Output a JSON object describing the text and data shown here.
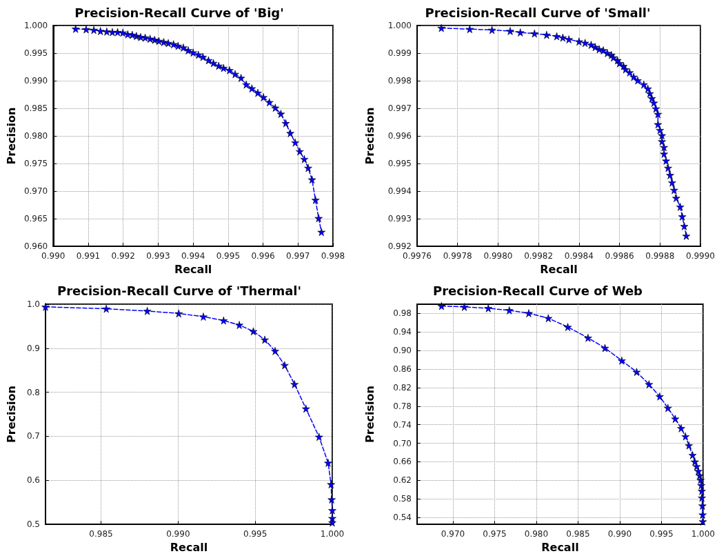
{
  "chart_data": [
    {
      "type": "line",
      "title": "Precision-Recall Curve of 'Big'",
      "xlabel": "Recall",
      "ylabel": "Precision",
      "xlim": [
        0.99,
        0.998
      ],
      "ylim": [
        0.96,
        1.0
      ],
      "xticks": [
        {
          "value": 0.99,
          "label": "0.990"
        },
        0.991,
        0.992,
        0.993,
        0.994,
        0.995,
        0.996,
        0.997,
        0.998
      ],
      "yticks": [
        {
          "value": 0.96,
          "label": "0.960"
        },
        0.965,
        {
          "value": 0.97,
          "label": "0.970"
        },
        0.975,
        {
          "value": 0.98,
          "label": "0.980"
        },
        0.985,
        {
          "value": 0.99,
          "label": "0.990"
        },
        0.995,
        {
          "value": 1.0,
          "label": "1.000"
        }
      ],
      "grid": true,
      "marker": "star",
      "line_style": "dashed",
      "series": [
        {
          "color": "#0000ff",
          "x": [
            0.99064,
            0.99094,
            0.99116,
            0.99135,
            0.99153,
            0.99169,
            0.99184,
            0.99199,
            0.99213,
            0.99226,
            0.99238,
            0.9925,
            0.99263,
            0.99277,
            0.9929,
            0.99302,
            0.99316,
            0.99329,
            0.99344,
            0.99357,
            0.99372,
            0.99386,
            0.994,
            0.99415,
            0.99428,
            0.99444,
            0.99458,
            0.99473,
            0.99487,
            0.99504,
            0.9952,
            0.99537,
            0.99552,
            0.99568,
            0.99585,
            0.99601,
            0.99618,
            0.99635,
            0.99651,
            0.99665,
            0.99678,
            0.99692,
            0.99705,
            0.99718,
            0.99729,
            0.9974,
            0.9975,
            0.99759,
            0.99767
          ],
          "values": [
            0.9994,
            0.9993,
            0.9992,
            0.999,
            0.9989,
            0.9988,
            0.9988,
            0.9987,
            0.9984,
            0.9983,
            0.9981,
            0.9979,
            0.9978,
            0.9976,
            0.9974,
            0.9972,
            0.997,
            0.9968,
            0.9966,
            0.9963,
            0.996,
            0.9955,
            0.9951,
            0.9947,
            0.9943,
            0.9937,
            0.9932,
            0.9927,
            0.9923,
            0.9919,
            0.9912,
            0.9905,
            0.9893,
            0.9886,
            0.9878,
            0.987,
            0.9861,
            0.9851,
            0.984,
            0.9823,
            0.9805,
            0.9788,
            0.9772,
            0.9758,
            0.9742,
            0.9721,
            0.9684,
            0.9651,
            0.9626
          ]
        }
      ]
    },
    {
      "type": "line",
      "title": "Precision-Recall Curve of 'Small'",
      "xlabel": "Recall",
      "ylabel": "Precision",
      "xlim": [
        0.9976,
        0.999
      ],
      "ylim": [
        0.992,
        1.0
      ],
      "xticks": [
        0.9976,
        0.9978,
        {
          "value": 0.998,
          "label": "0.9980"
        },
        0.9982,
        0.9984,
        0.9986,
        0.9988,
        {
          "value": 0.999,
          "label": "0.9990"
        }
      ],
      "yticks": [
        0.992,
        0.993,
        0.994,
        0.995,
        0.996,
        0.997,
        0.998,
        0.999,
        {
          "value": 1.0,
          "label": "1.000"
        }
      ],
      "grid": true,
      "marker": "star",
      "line_style": "dashed",
      "series": [
        {
          "color": "#0000ff",
          "x": [
            0.99772,
            0.99786,
            0.99797,
            0.99806,
            0.99811,
            0.99818,
            0.99824,
            0.99829,
            0.99832,
            0.99835,
            0.9984,
            0.99843,
            0.99846,
            0.99848,
            0.9985,
            0.99852,
            0.99854,
            0.99856,
            0.99857,
            0.99859,
            0.9986,
            0.99862,
            0.99863,
            0.99865,
            0.99867,
            0.99869,
            0.99872,
            0.99874,
            0.99875,
            0.99876,
            0.99877,
            0.99878,
            0.99879,
            0.99879,
            0.9988,
            0.99881,
            0.99881,
            0.99882,
            0.99882,
            0.99883,
            0.99884,
            0.99885,
            0.99886,
            0.99887,
            0.99888,
            0.9989,
            0.99891,
            0.99892,
            0.99893
          ],
          "values": [
            0.99991,
            0.99987,
            0.99984,
            0.9998,
            0.99975,
            0.99971,
            0.99966,
            0.99961,
            0.99956,
            0.9995,
            0.99942,
            0.99937,
            0.9993,
            0.99922,
            0.99914,
            0.9991,
            0.999,
            0.99893,
            0.99884,
            0.99874,
            0.99863,
            0.99853,
            0.99841,
            0.9983,
            0.99814,
            0.99801,
            0.99786,
            0.99771,
            0.99754,
            0.99736,
            0.9972,
            0.99699,
            0.99679,
            0.99642,
            0.99621,
            0.99602,
            0.9958,
            0.99559,
            0.99535,
            0.9951,
            0.99484,
            0.99458,
            0.99431,
            0.99404,
            0.99375,
            0.99343,
            0.99308,
            0.99273,
            0.99238
          ]
        }
      ]
    },
    {
      "type": "line",
      "title": "Precision-Recall Curve of 'Thermal'",
      "xlabel": "Recall",
      "ylabel": "Precision",
      "xlim": [
        0.9814,
        1.0
      ],
      "ylim": [
        0.5,
        1.0
      ],
      "xticks": [
        0.985,
        {
          "value": 0.99,
          "label": "0.990"
        },
        0.995,
        {
          "value": 1.0,
          "label": "1.000"
        }
      ],
      "yticks": [
        0.5,
        0.6,
        0.7,
        0.8,
        0.9,
        {
          "value": 1.0,
          "label": "1.0"
        }
      ],
      "grid": true,
      "marker": "star",
      "line_style": "dashed",
      "series": [
        {
          "color": "#0000ff",
          "x": [
            0.9814,
            0.98534,
            0.988,
            0.99004,
            0.99164,
            0.99295,
            0.99397,
            0.99488,
            0.99562,
            0.99629,
            0.99691,
            0.99755,
            0.99829,
            0.99914,
            0.99973,
            0.99992,
            0.99996,
            1.0,
            1.0,
            1.0
          ],
          "values": [
            0.994,
            0.9897,
            0.9846,
            0.979,
            0.9718,
            0.963,
            0.9528,
            0.9384,
            0.9194,
            0.8937,
            0.8614,
            0.8183,
            0.7628,
            0.6987,
            0.6396,
            0.5909,
            0.5565,
            0.5318,
            0.514,
            0.504
          ]
        }
      ]
    },
    {
      "type": "line",
      "title": "Precision-Recall Curve of Web",
      "xlabel": "Recall",
      "ylabel": "Precision",
      "xlim": [
        0.9657,
        1.0
      ],
      "ylim": [
        0.525,
        1.0
      ],
      "xticks": [
        {
          "value": 0.97,
          "label": "0.970"
        },
        0.975,
        {
          "value": 0.98,
          "label": "0.980"
        },
        0.985,
        {
          "value": 0.99,
          "label": "0.990"
        },
        0.995,
        {
          "value": 1.0,
          "label": "1.000"
        }
      ],
      "yticks": [
        0.54,
        0.58,
        0.62,
        0.66,
        {
          "value": 0.7,
          "label": "0.70"
        },
        0.74,
        0.78,
        0.82,
        0.86,
        {
          "value": 0.9,
          "label": "0.90"
        },
        0.94,
        0.98
      ],
      "grid": true,
      "marker": "star",
      "line_style": "dashed",
      "series": [
        {
          "color": "#0000ff",
          "x": [
            0.96863,
            0.97137,
            0.97424,
            0.97676,
            0.97909,
            0.98144,
            0.98377,
            0.9862,
            0.98823,
            0.99025,
            0.99203,
            0.99351,
            0.9948,
            0.99578,
            0.99666,
            0.99737,
            0.99789,
            0.9983,
            0.99874,
            0.99901,
            0.99923,
            0.99943,
            0.99959,
            0.9997,
            0.99978,
            0.99984,
            0.99986,
            0.99992,
            0.99995,
            0.99997
          ],
          "values": [
            0.9961,
            0.9942,
            0.9913,
            0.9868,
            0.9805,
            0.9698,
            0.9508,
            0.9274,
            0.9055,
            0.8783,
            0.8539,
            0.8272,
            0.8009,
            0.7761,
            0.7527,
            0.7323,
            0.7147,
            0.6953,
            0.6743,
            0.6602,
            0.65,
            0.6398,
            0.6305,
            0.6208,
            0.6091,
            0.5969,
            0.5823,
            0.5653,
            0.5458,
            0.5312
          ]
        }
      ]
    }
  ]
}
